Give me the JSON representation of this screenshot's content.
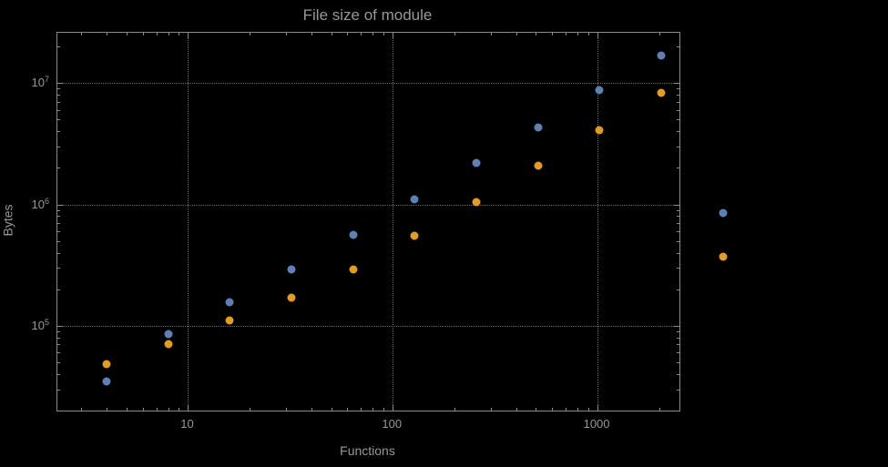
{
  "colors": {
    "background": "#000000",
    "text": "#979797",
    "frame": "#8a8a8a",
    "grid": "#6a6a6a"
  },
  "chart_data": {
    "type": "scatter",
    "title": "File size of module",
    "xlabel": "Functions",
    "ylabel": "Bytes",
    "x_scale": "log",
    "y_scale": "log",
    "grid": "dotted-major-both-axes",
    "legend_position": "none",
    "xlim": [
      2.3,
      2512
    ],
    "ylim": [
      20000,
      26000000
    ],
    "x": [
      4,
      8,
      16,
      32,
      64,
      128,
      256,
      512,
      1024,
      2048,
      4096
    ],
    "series": [
      {
        "name": "series-blue",
        "color": "#5e81b5",
        "values": [
          35000,
          85000,
          155000,
          290000,
          560000,
          1100000,
          2200000,
          4300000,
          8800000,
          17000000,
          850000
        ]
      },
      {
        "name": "series-orange",
        "color": "#e19c24",
        "values": [
          48000,
          70000,
          110000,
          170000,
          290000,
          550000,
          1050000,
          2100000,
          4100000,
          8300000,
          370000
        ]
      }
    ],
    "x_major_ticks": [
      10,
      100,
      1000
    ],
    "x_tick_labels": [
      "10",
      "100",
      "1000"
    ],
    "y_major_ticks": [
      100000,
      1000000,
      10000000
    ],
    "y_tick_labels": [
      {
        "base": "10",
        "exp": "5"
      },
      {
        "base": "10",
        "exp": "6"
      },
      {
        "base": "10",
        "exp": "7"
      }
    ]
  }
}
